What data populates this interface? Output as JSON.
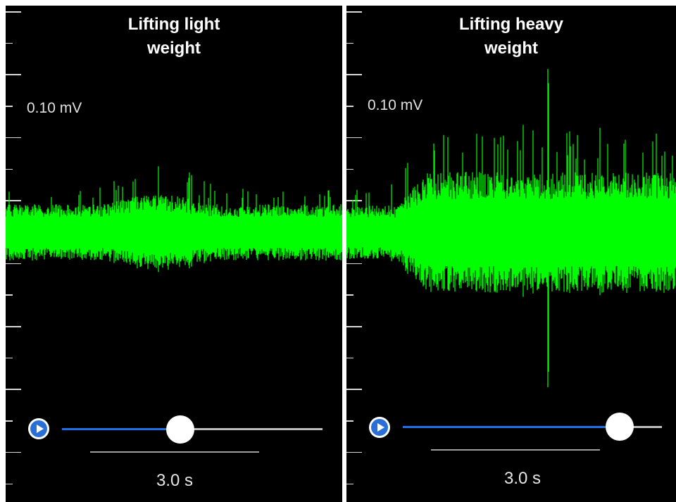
{
  "panels": [
    {
      "title": "Lifting light\nweight",
      "amplitude_label": "0.10 mV",
      "scale_label": "3.0 s",
      "playback_fraction": 0.45,
      "trace_color": "#00ff00"
    },
    {
      "title": "Lifting heavy\nweight",
      "amplitude_label": "0.10 mV",
      "scale_label": "3.0 s",
      "playback_fraction": 0.83,
      "trace_color": "#00ff00"
    }
  ],
  "colors": {
    "background": "#000000",
    "trace": "#00ff00",
    "slider_fill": "#1f6fe8",
    "slider_rest": "#bdbdbd",
    "play_button": "#2a6fd6"
  },
  "icons": [
    "play-icon"
  ]
}
